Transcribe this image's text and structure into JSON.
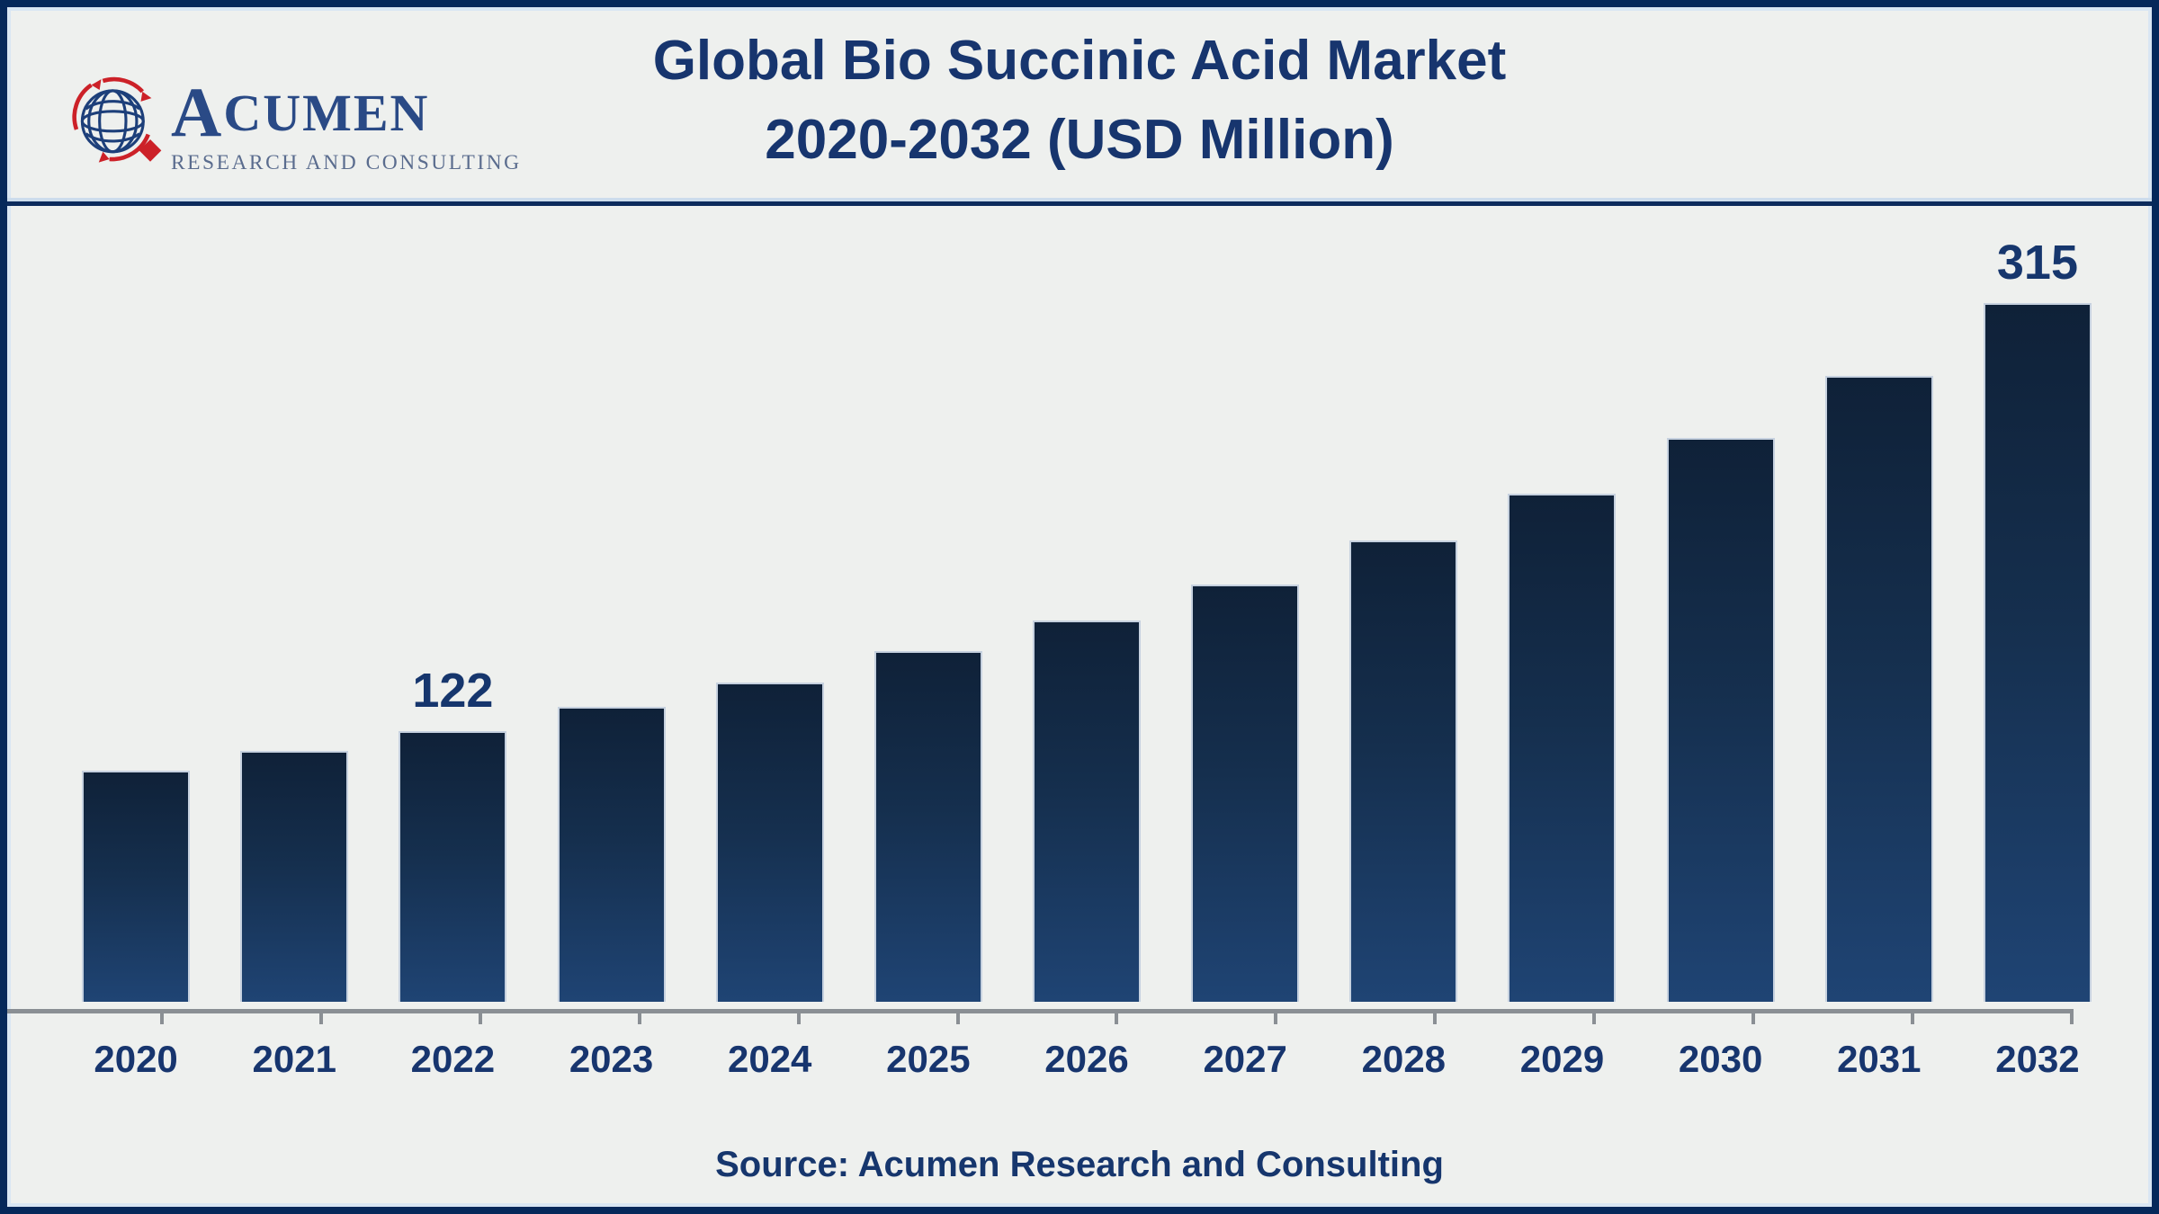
{
  "header": {
    "logo": {
      "name_initial": "A",
      "name_rest": "CUMEN",
      "subtitle": "RESEARCH AND CONSULTING"
    },
    "title_line1": "Global Bio Succinic Acid Market",
    "title_line2": "2020-2032 (USD Million)"
  },
  "chart_data": {
    "type": "bar",
    "title": "Global Bio Succinic Acid Market 2020-2032 (USD Million)",
    "unit": "USD Million",
    "categories": [
      "2020",
      "2021",
      "2022",
      "2023",
      "2024",
      "2025",
      "2026",
      "2027",
      "2028",
      "2029",
      "2030",
      "2031",
      "2032"
    ],
    "values": [
      104,
      113,
      122,
      133,
      144,
      158,
      172,
      188,
      208,
      229,
      254,
      282,
      315
    ],
    "value_labels": {
      "2022": "122",
      "2032": "315"
    },
    "ylim": [
      0,
      340
    ],
    "xlabel": "",
    "ylabel": "",
    "gridlines": false,
    "legend_position": "none",
    "bar_gradient_top": "#0f2138",
    "bar_gradient_bottom": "#1f4474",
    "bar_border_color": "#c6d1df",
    "axis_color": "#8a8f94",
    "text_color": "#17356e"
  },
  "footer": {
    "source_text": "Source: Acumen Research and Consulting"
  }
}
